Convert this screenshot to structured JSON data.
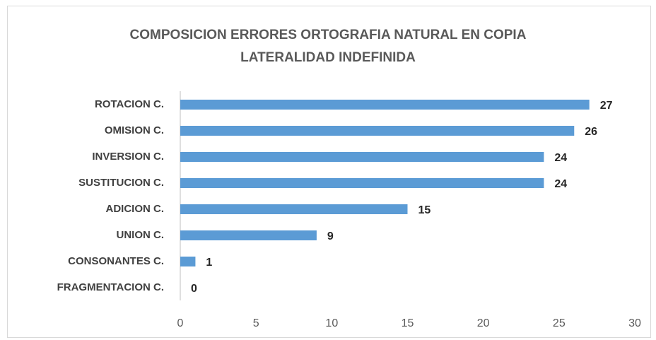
{
  "chart_data": {
    "type": "bar",
    "orientation": "horizontal",
    "title": [
      "COMPOSICION ERRORES ORTOGRAFIA NATURAL EN COPIA",
      "LATERALIDAD INDEFINIDA"
    ],
    "categories": [
      "ROTACION C.",
      "OMISION C.",
      "INVERSION C.",
      "SUSTITUCION C.",
      "ADICION C.",
      "UNION C.",
      "CONSONANTES C.",
      "FRAGMENTACION C."
    ],
    "values": [
      27,
      26,
      24,
      24,
      15,
      9,
      1,
      0
    ],
    "color": "#5b9bd5",
    "xlim": [
      0,
      30
    ],
    "xticks": [
      0,
      5,
      10,
      15,
      20,
      25,
      30
    ],
    "grid": false
  }
}
